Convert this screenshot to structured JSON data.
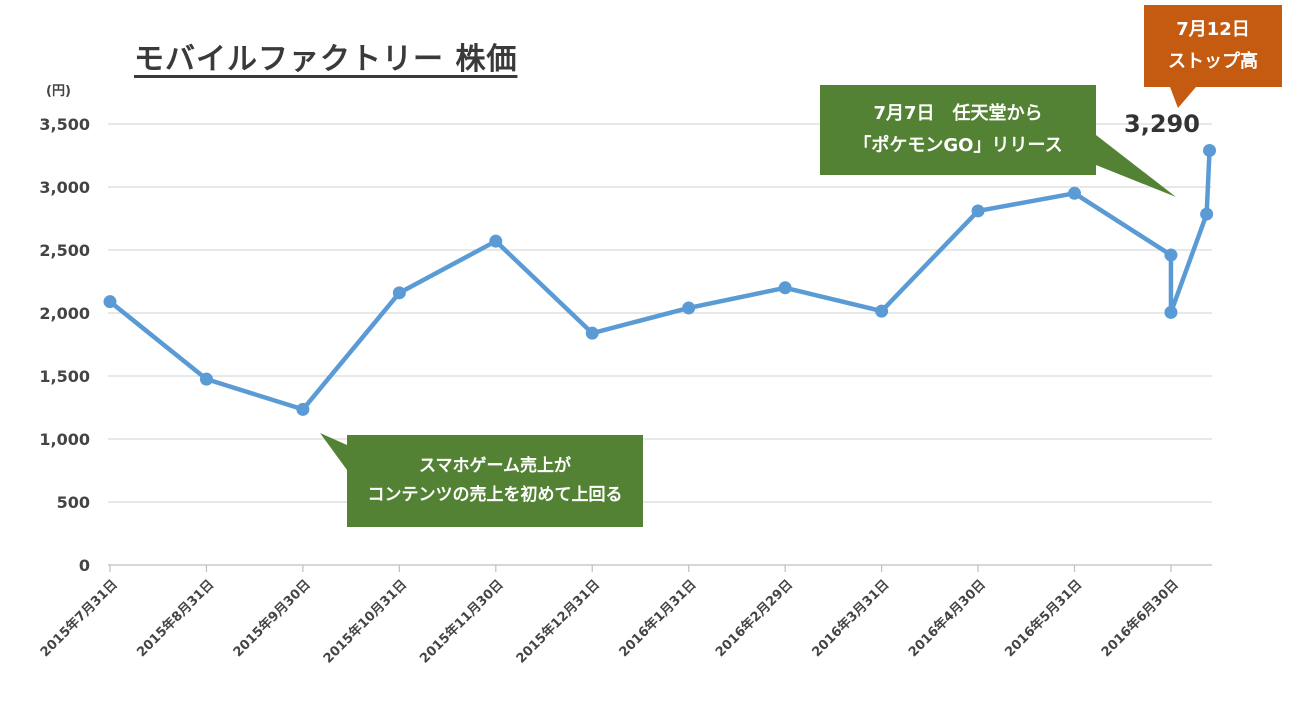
{
  "title": "モバイルファクトリー 株価",
  "unit_label": "(円)",
  "chart_data": {
    "type": "line",
    "title": "モバイルファクトリー 株価",
    "ylabel": "(円)",
    "ylim": [
      0,
      3500
    ],
    "yticks": [
      0,
      500,
      1000,
      1500,
      2000,
      2500,
      3000,
      3500
    ],
    "ytick_labels": [
      "0",
      "500",
      "1,000",
      "1,500",
      "2,000",
      "2,500",
      "3,000",
      "3,500"
    ],
    "categories": [
      "2015年7月31日",
      "2015年8月31日",
      "2015年9月30日",
      "2015年10月31日",
      "2015年11月30日",
      "2015年12月31日",
      "2016年1月31日",
      "2016年2月29日",
      "2016年3月31日",
      "2016年4月30日",
      "2016年5月31日",
      "2016年6月30日"
    ],
    "series": [
      {
        "name": "株価",
        "x": [
          0,
          1,
          2,
          3,
          4,
          5,
          6,
          7,
          8,
          9,
          10,
          11,
          11,
          11.37,
          11.4
        ],
        "values": [
          2090,
          1475,
          1235,
          2160,
          2570,
          1840,
          2040,
          2200,
          2015,
          2810,
          2950,
          2460,
          2005,
          2785,
          3290
        ],
        "color": "#5b9bd5"
      }
    ],
    "grid": true,
    "last_value_label": "3,290"
  },
  "annotations": {
    "smartphone": {
      "line1": "スマホゲーム売上が",
      "line2": "コンテンツの売上を初めて上回る"
    },
    "pokemon": {
      "line1": "7月7日　任天堂から",
      "line2": "「ポケモンGO」リリース"
    },
    "stop_high": {
      "line1": "7月12日",
      "line2": "ストップ高"
    }
  },
  "colors": {
    "line": "#5b9bd5",
    "grid": "#d9d9d9",
    "callout_green": "#548235",
    "callout_orange": "#c55a11"
  }
}
